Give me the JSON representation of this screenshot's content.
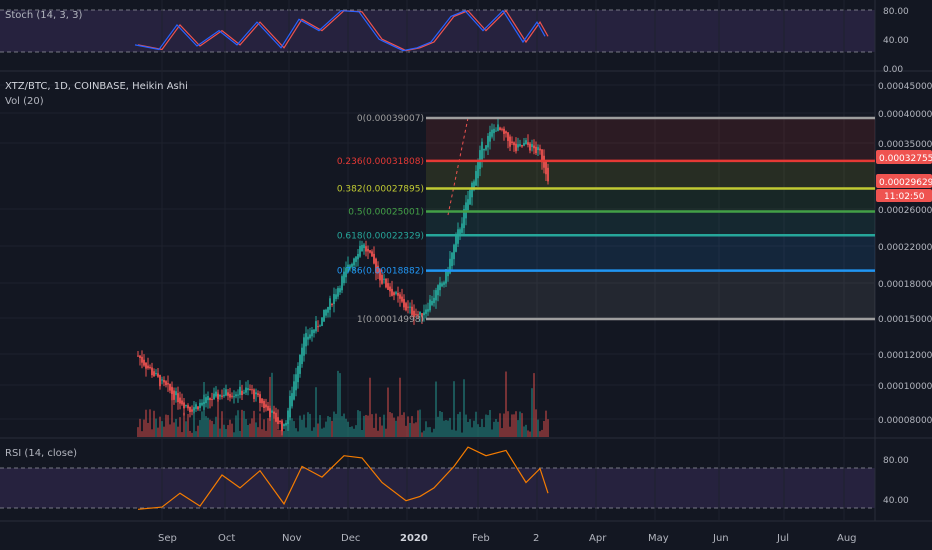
{
  "stoch_panel": {
    "label": "Stoch (14, 3, 3)",
    "levels": [
      "80.00",
      "40.00",
      "0.00"
    ]
  },
  "main_panel": {
    "symbol_line": "XTZ/BTC, 1D, COINBASE, Heikin Ashi",
    "vol_label": "Vol (20)",
    "price_labels": [
      "0.00045000",
      "0.00040000",
      "0.00035000",
      "0.00026000",
      "0.00022000",
      "0.00018000",
      "0.00015000",
      "0.00012000",
      "0.00010000",
      "0.00008000"
    ],
    "tags": [
      {
        "text": "0.00032755",
        "color": "#ef5350"
      },
      {
        "text": "0.00029629",
        "color": "#ef5350"
      },
      {
        "text": "11:02:50",
        "color": "#ef5350"
      }
    ]
  },
  "fib_levels": [
    {
      "label": "0(0.00039007)",
      "value": 0.00039007,
      "color": "#9e9e9e"
    },
    {
      "label": "0.236(0.00031808)",
      "value": 0.00031808,
      "color": "#e53935"
    },
    {
      "label": "0.382(0.00027895)",
      "value": 0.00027895,
      "color": "#c0ca33"
    },
    {
      "label": "0.5(0.00025001)",
      "value": 0.00025001,
      "color": "#43a047"
    },
    {
      "label": "0.618(0.00022329)",
      "value": 0.00022329,
      "color": "#26a69a"
    },
    {
      "label": "0.786(0.00018882)",
      "value": 0.00018882,
      "color": "#2196f3"
    },
    {
      "label": "1(0.00014998)",
      "value": 0.00014998,
      "color": "#9e9e9e"
    }
  ],
  "rsi_panel": {
    "label": "RSI (14, close)",
    "levels": [
      "80.00",
      "40.00"
    ]
  },
  "time_axis": [
    "Sep",
    "Oct",
    "Nov",
    "Dec",
    "2020",
    "Feb",
    "2",
    "Apr",
    "May",
    "Jun",
    "Jul",
    "Aug"
  ],
  "colors": {
    "up": "#26a69a",
    "down": "#ef5350",
    "bg": "#131722",
    "band": "#7e57c2",
    "rsi_line": "#f57c00",
    "stoch_k": "#2962ff",
    "stoch_d": "#ef5350"
  },
  "chart_data": {
    "type": "line",
    "title": "XTZ/BTC, 1D, COINBASE, Heikin Ashi",
    "xlabel": "",
    "ylabel": "",
    "ylog": true,
    "ylim": [
      7e-05,
      0.00046
    ],
    "x": [
      "Aug-20",
      "Sep-01",
      "Sep-15",
      "Oct-01",
      "Oct-15",
      "Nov-01",
      "Nov-10",
      "Nov-20",
      "Dec-01",
      "Dec-10",
      "Dec-20",
      "Jan-01",
      "Jan-08",
      "Jan-20",
      "Feb-01",
      "Feb-08",
      "Feb-15",
      "Feb-25",
      "Mar-01",
      "Mar-08",
      "Mar-12"
    ],
    "series": [
      {
        "values": [
          0.000126,
          0.00011,
          9.8e-05,
          0.000105,
          0.000107,
          8.9e-05,
          0.000134,
          0.00015,
          0.000185,
          0.000216,
          0.00018,
          0.000158,
          0.000152,
          0.00018,
          0.000265,
          0.00034,
          0.000375,
          0.000335,
          0.000345,
          0.00033,
          0.000296
        ]
      }
    ],
    "stoch": {
      "name": "Stoch (14, 3, 3)",
      "ylim": [
        0,
        100
      ],
      "x": [
        "Aug-20",
        "Sep-01",
        "Sep-10",
        "Sep-20",
        "Oct-01",
        "Oct-10",
        "Oct-20",
        "Nov-01",
        "Nov-10",
        "Nov-20",
        "Dec-01",
        "Dec-10",
        "Dec-20",
        "Jan-01",
        "Jan-08",
        "Jan-15",
        "Jan-25",
        "Feb-01",
        "Feb-10",
        "Feb-20",
        "Mar-01",
        "Mar-08",
        "Mar-12"
      ],
      "values": [
        30,
        22,
        65,
        28,
        55,
        30,
        70,
        25,
        75,
        55,
        90,
        88,
        40,
        20,
        25,
        35,
        80,
        90,
        55,
        90,
        35,
        70,
        45
      ]
    },
    "rsi": {
      "name": "RSI (14, close)",
      "ylim": [
        20,
        90
      ],
      "x": [
        "Aug-20",
        "Sep-01",
        "Sep-10",
        "Sep-20",
        "Oct-01",
        "Oct-10",
        "Oct-20",
        "Nov-01",
        "Nov-10",
        "Nov-20",
        "Dec-01",
        "Dec-10",
        "Dec-20",
        "Jan-01",
        "Jan-08",
        "Jan-15",
        "Jan-25",
        "Feb-01",
        "Feb-10",
        "Feb-20",
        "Mar-01",
        "Mar-08",
        "Mar-12"
      ],
      "values": [
        30,
        32,
        45,
        33,
        62,
        50,
        66,
        35,
        70,
        60,
        80,
        78,
        55,
        38,
        42,
        50,
        70,
        88,
        80,
        85,
        55,
        68,
        45
      ]
    }
  }
}
